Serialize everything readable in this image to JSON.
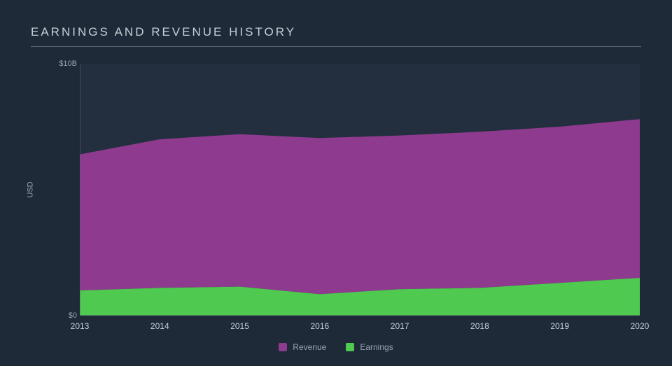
{
  "title": "EARNINGS AND REVENUE HISTORY",
  "chart": {
    "type": "area",
    "background_color": "#1e2a38",
    "plot_background_color": "#232f3e",
    "grid_color": "#5a6472",
    "text_color": "#9aa3af",
    "y_axis_label": "USD",
    "y_ticks": [
      {
        "value": 0,
        "label": "$0"
      },
      {
        "value": 10,
        "label": "$10B"
      }
    ],
    "ylim": [
      0,
      10
    ],
    "x_categories": [
      "2013",
      "2014",
      "2015",
      "2016",
      "2017",
      "2018",
      "2019",
      "2020"
    ],
    "series": [
      {
        "name": "Revenue",
        "color": "#8e3a8e",
        "values": [
          6.4,
          7.0,
          7.2,
          7.05,
          7.15,
          7.3,
          7.5,
          7.8
        ]
      },
      {
        "name": "Earnings",
        "color": "#4fc94f",
        "values": [
          1.0,
          1.1,
          1.15,
          0.85,
          1.05,
          1.1,
          1.3,
          1.5
        ]
      }
    ],
    "title_fontsize": 17,
    "axis_fontsize": 11,
    "tick_fontsize": 12,
    "letter_spacing": 3
  },
  "legend": {
    "items": [
      {
        "label": "Revenue",
        "color": "#8e3a8e"
      },
      {
        "label": "Earnings",
        "color": "#4fc94f"
      }
    ]
  }
}
